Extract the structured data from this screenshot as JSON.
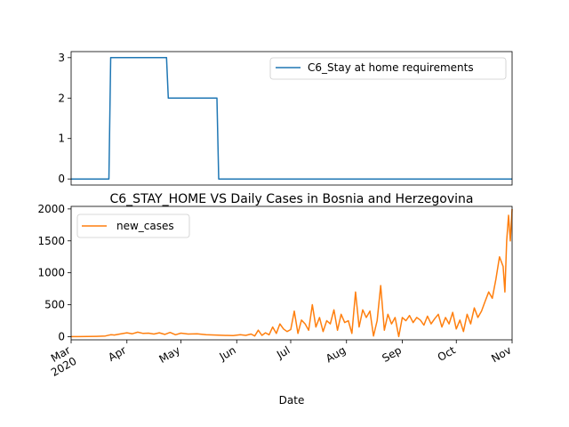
{
  "figure": {
    "xlabel": "Date"
  },
  "chart_data": [
    {
      "type": "line",
      "title": "",
      "xlabel": "",
      "ylabel": "",
      "x_range": [
        "2020-03-01",
        "2020-11-01"
      ],
      "ylim": [
        -0.15,
        3.15
      ],
      "yticks": [
        0,
        1,
        2,
        3
      ],
      "grid": false,
      "legend_position": "top-right",
      "series": [
        {
          "name": "C6_Stay at home requirements",
          "color": "#1f77b4",
          "step": true,
          "x": [
            "2020-03-01",
            "2020-03-22",
            "2020-03-23",
            "2020-04-23",
            "2020-04-24",
            "2020-05-21",
            "2020-05-22",
            "2020-11-01"
          ],
          "values": [
            0,
            0,
            3,
            3,
            2,
            2,
            0,
            0
          ]
        }
      ]
    },
    {
      "type": "line",
      "title": "C6_STAY_HOME VS Daily Cases in Bosnia and Herzegovina",
      "xlabel": "Date",
      "ylabel": "",
      "x_range": [
        "2020-03-01",
        "2020-11-01"
      ],
      "ylim": [
        -50,
        2040
      ],
      "yticks": [
        0,
        500,
        1000,
        1500,
        2000
      ],
      "xticks": [
        {
          "date": "2020-03-01",
          "label": "Mar",
          "sublabel": "2020"
        },
        {
          "date": "2020-04-01",
          "label": "Apr"
        },
        {
          "date": "2020-05-01",
          "label": "May"
        },
        {
          "date": "2020-06-01",
          "label": "Jun"
        },
        {
          "date": "2020-07-01",
          "label": "Jul"
        },
        {
          "date": "2020-08-01",
          "label": "Aug"
        },
        {
          "date": "2020-09-01",
          "label": "Sep"
        },
        {
          "date": "2020-10-01",
          "label": "Oct"
        },
        {
          "date": "2020-11-01",
          "label": "Nov"
        }
      ],
      "grid": false,
      "legend_position": "top-left",
      "series": [
        {
          "name": "new_cases",
          "color": "#ff7f0e",
          "x": [
            "2020-03-01",
            "2020-03-05",
            "2020-03-10",
            "2020-03-15",
            "2020-03-20",
            "2020-03-23",
            "2020-03-25",
            "2020-03-28",
            "2020-04-01",
            "2020-04-04",
            "2020-04-07",
            "2020-04-10",
            "2020-04-13",
            "2020-04-16",
            "2020-04-19",
            "2020-04-22",
            "2020-04-25",
            "2020-04-28",
            "2020-05-01",
            "2020-05-05",
            "2020-05-10",
            "2020-05-15",
            "2020-05-20",
            "2020-05-25",
            "2020-05-30",
            "2020-06-03",
            "2020-06-06",
            "2020-06-09",
            "2020-06-11",
            "2020-06-13",
            "2020-06-15",
            "2020-06-17",
            "2020-06-19",
            "2020-06-21",
            "2020-06-23",
            "2020-06-25",
            "2020-06-27",
            "2020-06-29",
            "2020-07-01",
            "2020-07-03",
            "2020-07-05",
            "2020-07-07",
            "2020-07-09",
            "2020-07-11",
            "2020-07-13",
            "2020-07-15",
            "2020-07-17",
            "2020-07-19",
            "2020-07-21",
            "2020-07-23",
            "2020-07-25",
            "2020-07-27",
            "2020-07-29",
            "2020-07-31",
            "2020-08-02",
            "2020-08-04",
            "2020-08-06",
            "2020-08-08",
            "2020-08-10",
            "2020-08-12",
            "2020-08-14",
            "2020-08-16",
            "2020-08-18",
            "2020-08-20",
            "2020-08-22",
            "2020-08-24",
            "2020-08-26",
            "2020-08-28",
            "2020-08-30",
            "2020-09-01",
            "2020-09-03",
            "2020-09-05",
            "2020-09-07",
            "2020-09-09",
            "2020-09-11",
            "2020-09-13",
            "2020-09-15",
            "2020-09-17",
            "2020-09-19",
            "2020-09-21",
            "2020-09-23",
            "2020-09-25",
            "2020-09-27",
            "2020-09-29",
            "2020-10-01",
            "2020-10-03",
            "2020-10-05",
            "2020-10-07",
            "2020-10-09",
            "2020-10-11",
            "2020-10-13",
            "2020-10-15",
            "2020-10-17",
            "2020-10-19",
            "2020-10-21",
            "2020-10-23",
            "2020-10-25",
            "2020-10-27",
            "2020-10-28",
            "2020-10-29",
            "2020-10-30",
            "2020-10-31",
            "2020-11-01"
          ],
          "values": [
            0,
            0,
            2,
            4,
            10,
            30,
            25,
            40,
            60,
            45,
            70,
            50,
            55,
            40,
            60,
            35,
            65,
            30,
            55,
            40,
            45,
            30,
            25,
            20,
            15,
            30,
            20,
            40,
            10,
            100,
            20,
            60,
            30,
            150,
            50,
            200,
            120,
            80,
            110,
            400,
            50,
            260,
            200,
            100,
            500,
            150,
            300,
            80,
            250,
            200,
            420,
            100,
            350,
            220,
            250,
            50,
            700,
            150,
            420,
            300,
            400,
            10,
            250,
            800,
            100,
            350,
            200,
            300,
            0,
            300,
            250,
            330,
            220,
            300,
            260,
            180,
            320,
            200,
            280,
            350,
            150,
            300,
            200,
            380,
            120,
            260,
            80,
            350,
            200,
            450,
            300,
            400,
            550,
            700,
            600,
            900,
            1250,
            1100,
            700,
            1500,
            1900,
            1500,
            2000
          ]
        }
      ]
    }
  ]
}
